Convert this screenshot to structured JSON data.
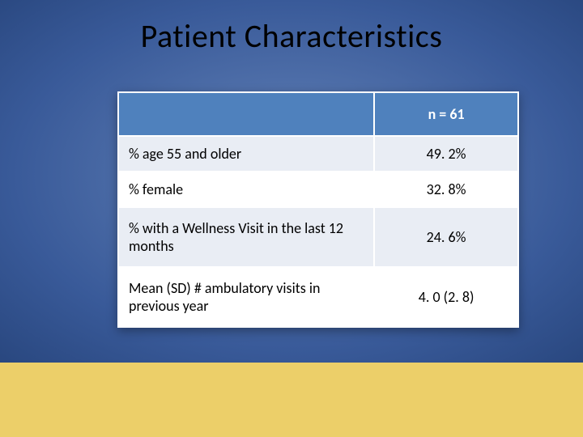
{
  "title": "Patient Characteristics",
  "table": {
    "type": "table",
    "header": {
      "col1": "",
      "col2": "n = 61"
    },
    "rows": [
      {
        "label": "% age 55 and older",
        "value": "49. 2%"
      },
      {
        "label": "% female",
        "value": "32. 8%"
      },
      {
        "label": "% with a Wellness Visit in the last 12 months",
        "value": "24. 6%"
      },
      {
        "label": "Mean (SD) # ambulatory visits  in previous year",
        "value": "4. 0 (2. 8)"
      }
    ],
    "banding_colors": {
      "a": "#e9edf4",
      "b": "#ffffff"
    },
    "header_bg": "#4f81bd",
    "header_color": "#ffffff",
    "border_color": "#ffffff",
    "font_size": 18,
    "col_widths": [
      "64%",
      "36%"
    ]
  },
  "background": {
    "gradient_inner": "#6281b8",
    "gradient_outer": "#13254a",
    "bottom_band_color": "#eccf69",
    "bottom_band_height": 92
  },
  "title_style": {
    "font_size": 40,
    "color": "#000000",
    "weight": "normal"
  }
}
